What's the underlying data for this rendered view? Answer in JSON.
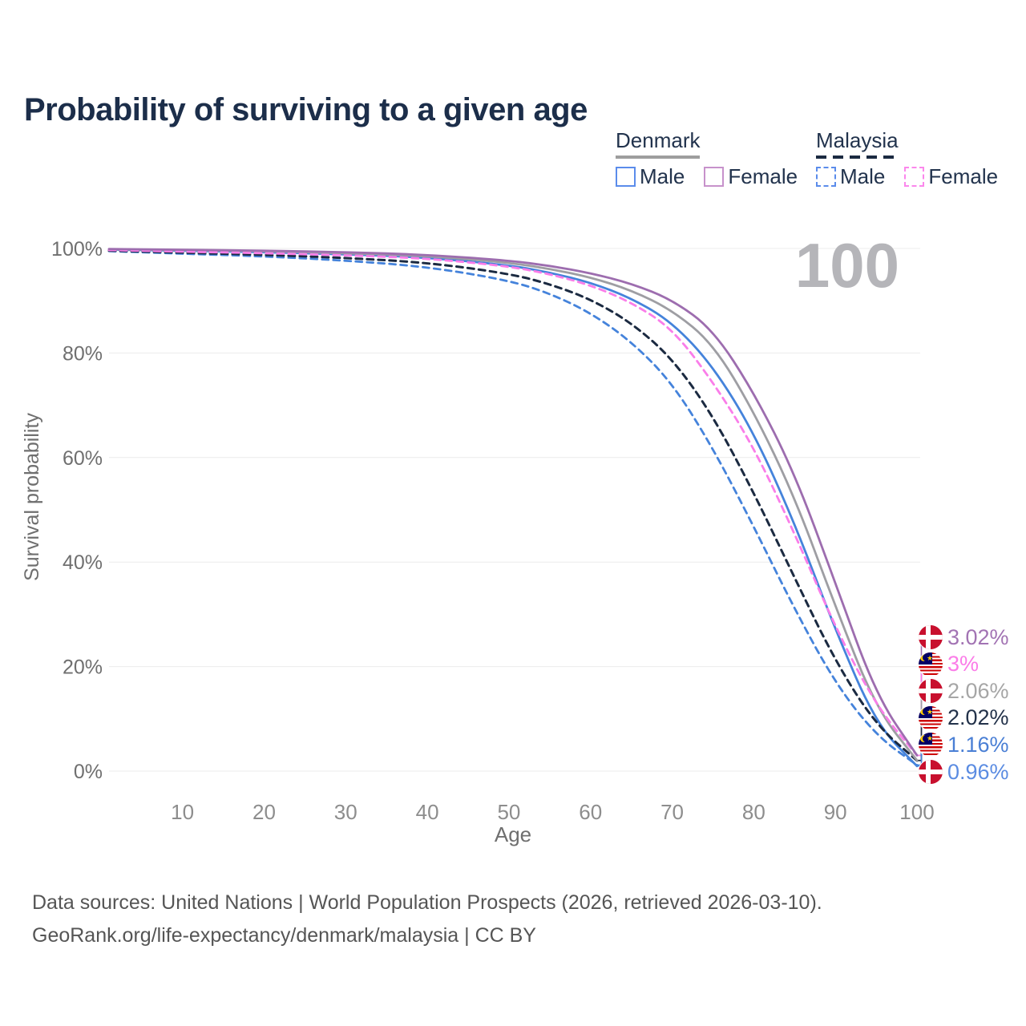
{
  "title": "Probability of surviving to a given age",
  "watermark_age": "100",
  "legend": {
    "groups": [
      {
        "name": "Denmark",
        "line_style": "solid",
        "items": [
          {
            "label": "Male",
            "box_color": "#5b8ceb",
            "dashed": false
          },
          {
            "label": "Female",
            "box_color": "#c792cb",
            "dashed": false
          }
        ]
      },
      {
        "name": "Malaysia",
        "line_style": "dashed",
        "items": [
          {
            "label": "Male",
            "box_color": "#5b8ceb",
            "dashed": true
          },
          {
            "label": "Female",
            "box_color": "#fb87ec",
            "dashed": true
          }
        ]
      }
    ]
  },
  "chart_data": {
    "type": "line",
    "title": "Probability of surviving to a given age",
    "xlabel": "Age",
    "ylabel": "Survival probability",
    "xlim": [
      1,
      100
    ],
    "ylim": [
      0,
      100
    ],
    "x_ticks": [
      10,
      20,
      30,
      40,
      50,
      60,
      70,
      80,
      90,
      100
    ],
    "y_ticks": [
      0,
      20,
      40,
      60,
      80,
      100
    ],
    "y_tick_suffix": "%",
    "grid": "horizontal",
    "ages": [
      1,
      10,
      20,
      30,
      40,
      50,
      55,
      60,
      65,
      70,
      75,
      80,
      85,
      90,
      95,
      100
    ],
    "series": [
      {
        "name": "Denmark Female",
        "country": "Denmark",
        "sex": "Female",
        "color": "#9d6daf",
        "dashed": false,
        "flag": "denmark",
        "end_value": 3.02,
        "end_label": "3.02%",
        "label_color": "#a273b3",
        "values": [
          99.9,
          99.75,
          99.6,
          99.3,
          98.8,
          97.7,
          96.7,
          95.3,
          93.3,
          90.2,
          84.5,
          72.5,
          57.0,
          36.0,
          14.5,
          3.02
        ]
      },
      {
        "name": "Malaysia Female",
        "country": "Malaysia",
        "sex": "Female",
        "color": "#fa7de9",
        "dashed": true,
        "flag": "malaysia",
        "end_value": 3.0,
        "end_label": "3%",
        "label_color": "#fb7ce8",
        "values": [
          99.7,
          99.4,
          99.1,
          98.7,
          98.1,
          96.6,
          95.1,
          93.0,
          89.7,
          84.7,
          74.5,
          62.0,
          45.5,
          27.5,
          12.5,
          3.0
        ]
      },
      {
        "name": "Denmark",
        "country": "Denmark",
        "sex": "Both",
        "color": "#9e9ea3",
        "dashed": false,
        "flag": "denmark",
        "end_value": 2.06,
        "end_label": "2.06%",
        "label_color": "#a6a6a6",
        "values": [
          99.85,
          99.7,
          99.5,
          99.1,
          98.6,
          97.3,
          96.1,
          94.5,
          92.0,
          88.2,
          81.8,
          68.8,
          52.5,
          31.5,
          12.0,
          2.06
        ]
      },
      {
        "name": "Malaysia",
        "country": "Malaysia",
        "sex": "Both",
        "color": "#1b2a41",
        "dashed": true,
        "flag": "malaysia",
        "end_value": 2.02,
        "end_label": "2.02%",
        "label_color": "#23324a",
        "values": [
          99.6,
          99.2,
          98.8,
          98.2,
          97.3,
          95.2,
          93.2,
          90.3,
          85.8,
          79.0,
          68.0,
          53.3,
          37.0,
          21.0,
          8.8,
          2.02
        ]
      },
      {
        "name": "Malaysia Male",
        "country": "Malaysia",
        "sex": "Male",
        "color": "#4583db",
        "dashed": true,
        "flag": "malaysia",
        "end_value": 1.16,
        "end_label": "1.16%",
        "label_color": "#4a7fd5",
        "values": [
          99.5,
          99.0,
          98.5,
          97.7,
          96.5,
          93.9,
          91.4,
          87.7,
          82.2,
          74.3,
          61.8,
          46.8,
          31.0,
          16.8,
          6.8,
          1.16
        ]
      },
      {
        "name": "Denmark Male",
        "country": "Denmark",
        "sex": "Male",
        "color": "#4583db",
        "dashed": false,
        "flag": "denmark",
        "end_value": 0.96,
        "end_label": "0.96%",
        "label_color": "#5b8ce2",
        "values": [
          99.8,
          99.6,
          99.3,
          98.9,
          98.3,
          96.8,
          95.4,
          93.5,
          90.5,
          85.9,
          77.5,
          64.8,
          47.5,
          27.0,
          9.0,
          0.96
        ]
      }
    ]
  },
  "footer": {
    "line1": "Data sources: United Nations | World Population Prospects (2026, retrieved 2026-03-10).",
    "line2": "GeoRank.org/life-expectancy/denmark/malaysia | CC BY"
  }
}
